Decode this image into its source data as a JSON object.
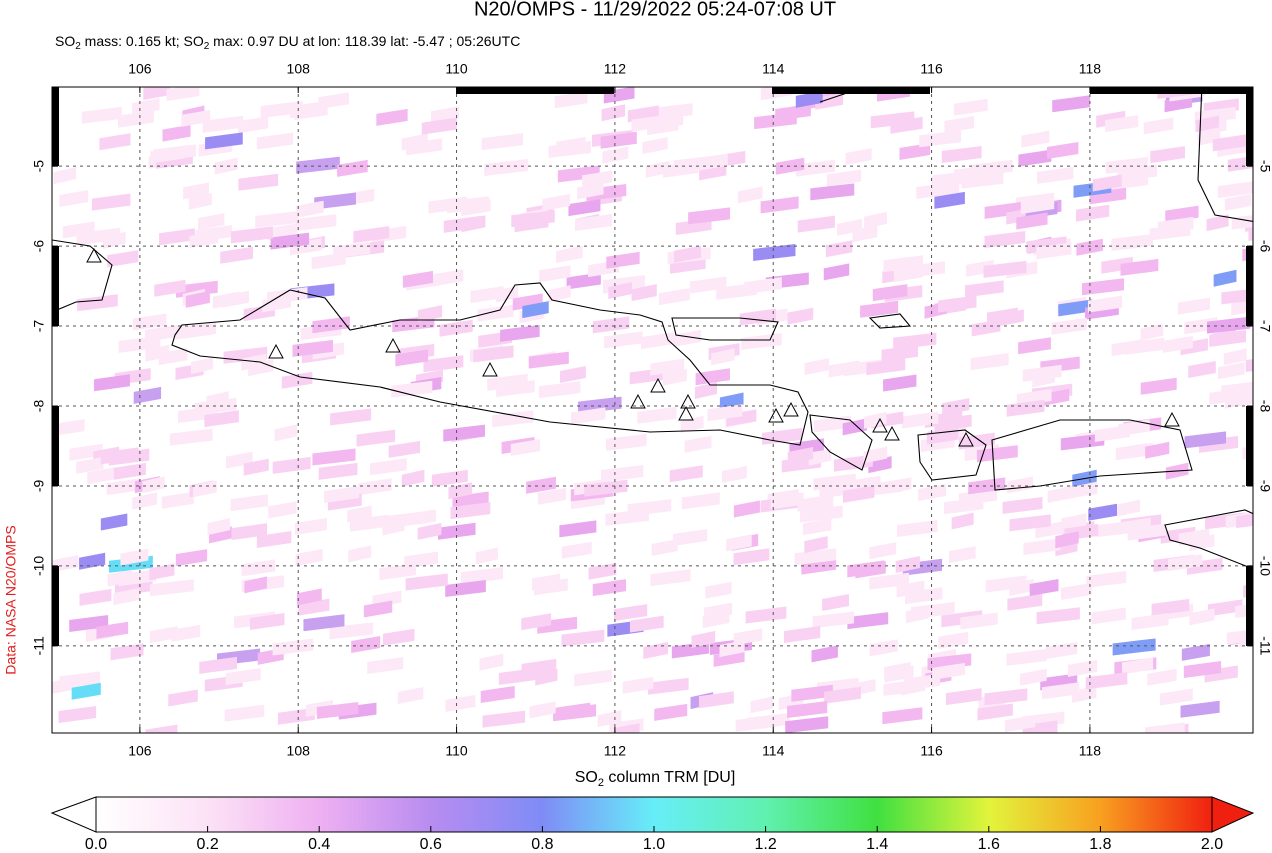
{
  "chart_data": {
    "type": "map",
    "title": "N20/OMPS - 11/29/2022 05:24-07:08 UT",
    "subtitle": [
      "SO",
      "2",
      " mass: 0.165 kt; SO",
      "2",
      " max: 0.97 DU at lon: 118.39 lat: -5.47 ; 05:26UTC"
    ],
    "side_label": "Data: NASA N20/OMPS",
    "xlim": [
      104.89,
      120.06
    ],
    "ylim": [
      -12.09,
      -4.01
    ],
    "xticks": [
      106,
      108,
      110,
      112,
      114,
      116,
      118
    ],
    "yticks": [
      -5,
      -6,
      -7,
      -8,
      -9,
      -10,
      -11
    ],
    "grid": true,
    "colorbar": {
      "label": [
        "SO",
        "2",
        " column TRM [DU]"
      ],
      "lim": [
        0,
        2
      ],
      "ticks": [
        {
          "value": 0,
          "label": "0.0"
        },
        {
          "value": 0.2,
          "label": "0.2"
        },
        {
          "value": 0.4,
          "label": "0.4"
        },
        {
          "value": 0.6,
          "label": "0.6"
        },
        {
          "value": 0.8,
          "label": "0.8"
        },
        {
          "value": 1,
          "label": "1.0"
        },
        {
          "value": 1.2,
          "label": "1.2"
        },
        {
          "value": 1.4,
          "label": "1.4"
        },
        {
          "value": 1.6,
          "label": "1.6"
        },
        {
          "value": 1.8,
          "label": "1.8"
        },
        {
          "value": 2,
          "label": "2.0"
        }
      ]
    }
  }
}
